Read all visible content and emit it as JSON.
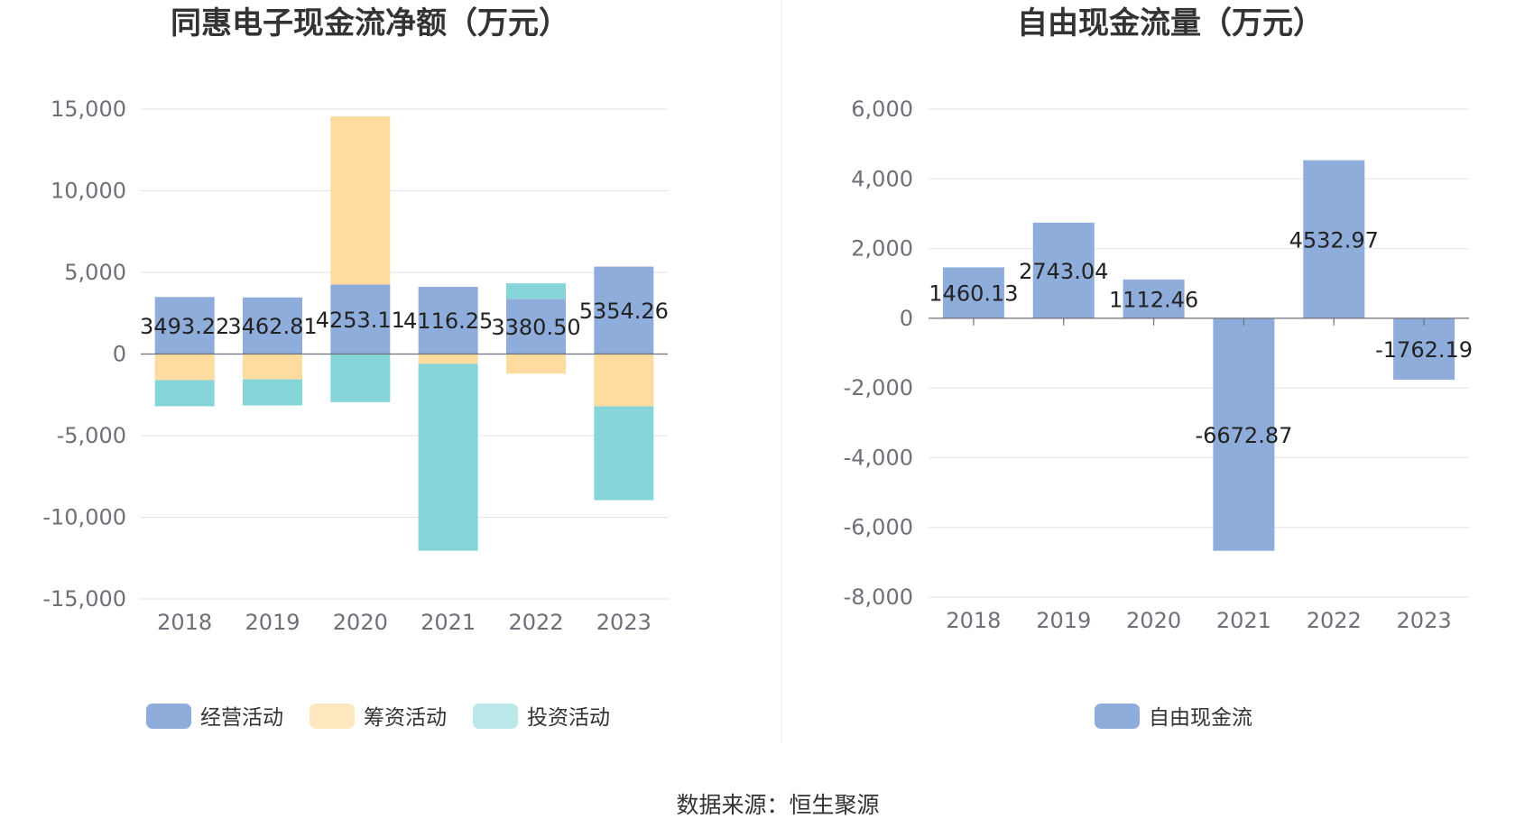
{
  "source": "数据来源：恒生聚源",
  "colors": {
    "operating": "#8eaddb",
    "financing": "#fedb9e",
    "investing": "#86d6d9",
    "free_cash_flow": "#8eaddb",
    "grid": "#e0e3ea",
    "axis": "#6e7079",
    "divider": "#eeeeee"
  },
  "chart_data": [
    {
      "type": "bar",
      "stacked": true,
      "title": "同惠电子现金流净额（万元）",
      "categories": [
        "2018",
        "2019",
        "2020",
        "2021",
        "2022",
        "2023"
      ],
      "ylim": [
        -15000,
        15000
      ],
      "yticks": [
        15000,
        10000,
        5000,
        0,
        -5000,
        -10000,
        -15000
      ],
      "ytick_labels": [
        "15,000",
        "10,000",
        "5,000",
        "0",
        "-5,000",
        "-10,000",
        "-15,000"
      ],
      "grid": true,
      "legend_position": "bottom",
      "series": [
        {
          "name": "经营活动",
          "color_key": "operating",
          "values": [
            3493.22,
            3462.81,
            4253.11,
            4116.25,
            3380.5,
            5354.26
          ],
          "labels": [
            "3493.22",
            "3462.81",
            "4253.11",
            "4116.25",
            "3380.50",
            "5354.26"
          ]
        },
        {
          "name": "筹资活动",
          "color_key": "financing",
          "values": [
            -1600,
            -1550,
            10300,
            -600,
            -1200,
            -3200
          ]
        },
        {
          "name": "投资活动",
          "color_key": "investing",
          "values": [
            -1600,
            -1600,
            -2950,
            -11450,
            950,
            -5750
          ]
        }
      ]
    },
    {
      "type": "bar",
      "stacked": false,
      "title": "自由现金流量（万元）",
      "categories": [
        "2018",
        "2019",
        "2020",
        "2021",
        "2022",
        "2023"
      ],
      "ylim": [
        -8000,
        6000
      ],
      "yticks": [
        6000,
        4000,
        2000,
        0,
        -2000,
        -4000,
        -6000,
        -8000
      ],
      "ytick_labels": [
        "6,000",
        "4,000",
        "2,000",
        "0",
        "-2,000",
        "-4,000",
        "-6,000",
        "-8,000"
      ],
      "grid": true,
      "legend_position": "bottom",
      "series": [
        {
          "name": "自由现金流",
          "color_key": "free_cash_flow",
          "values": [
            1460.13,
            2743.04,
            1112.46,
            -6672.87,
            4532.97,
            -1762.19
          ],
          "labels": [
            "1460.13",
            "2743.04",
            "1112.46",
            "-6672.87",
            "4532.97",
            "-1762.19"
          ]
        }
      ]
    }
  ]
}
